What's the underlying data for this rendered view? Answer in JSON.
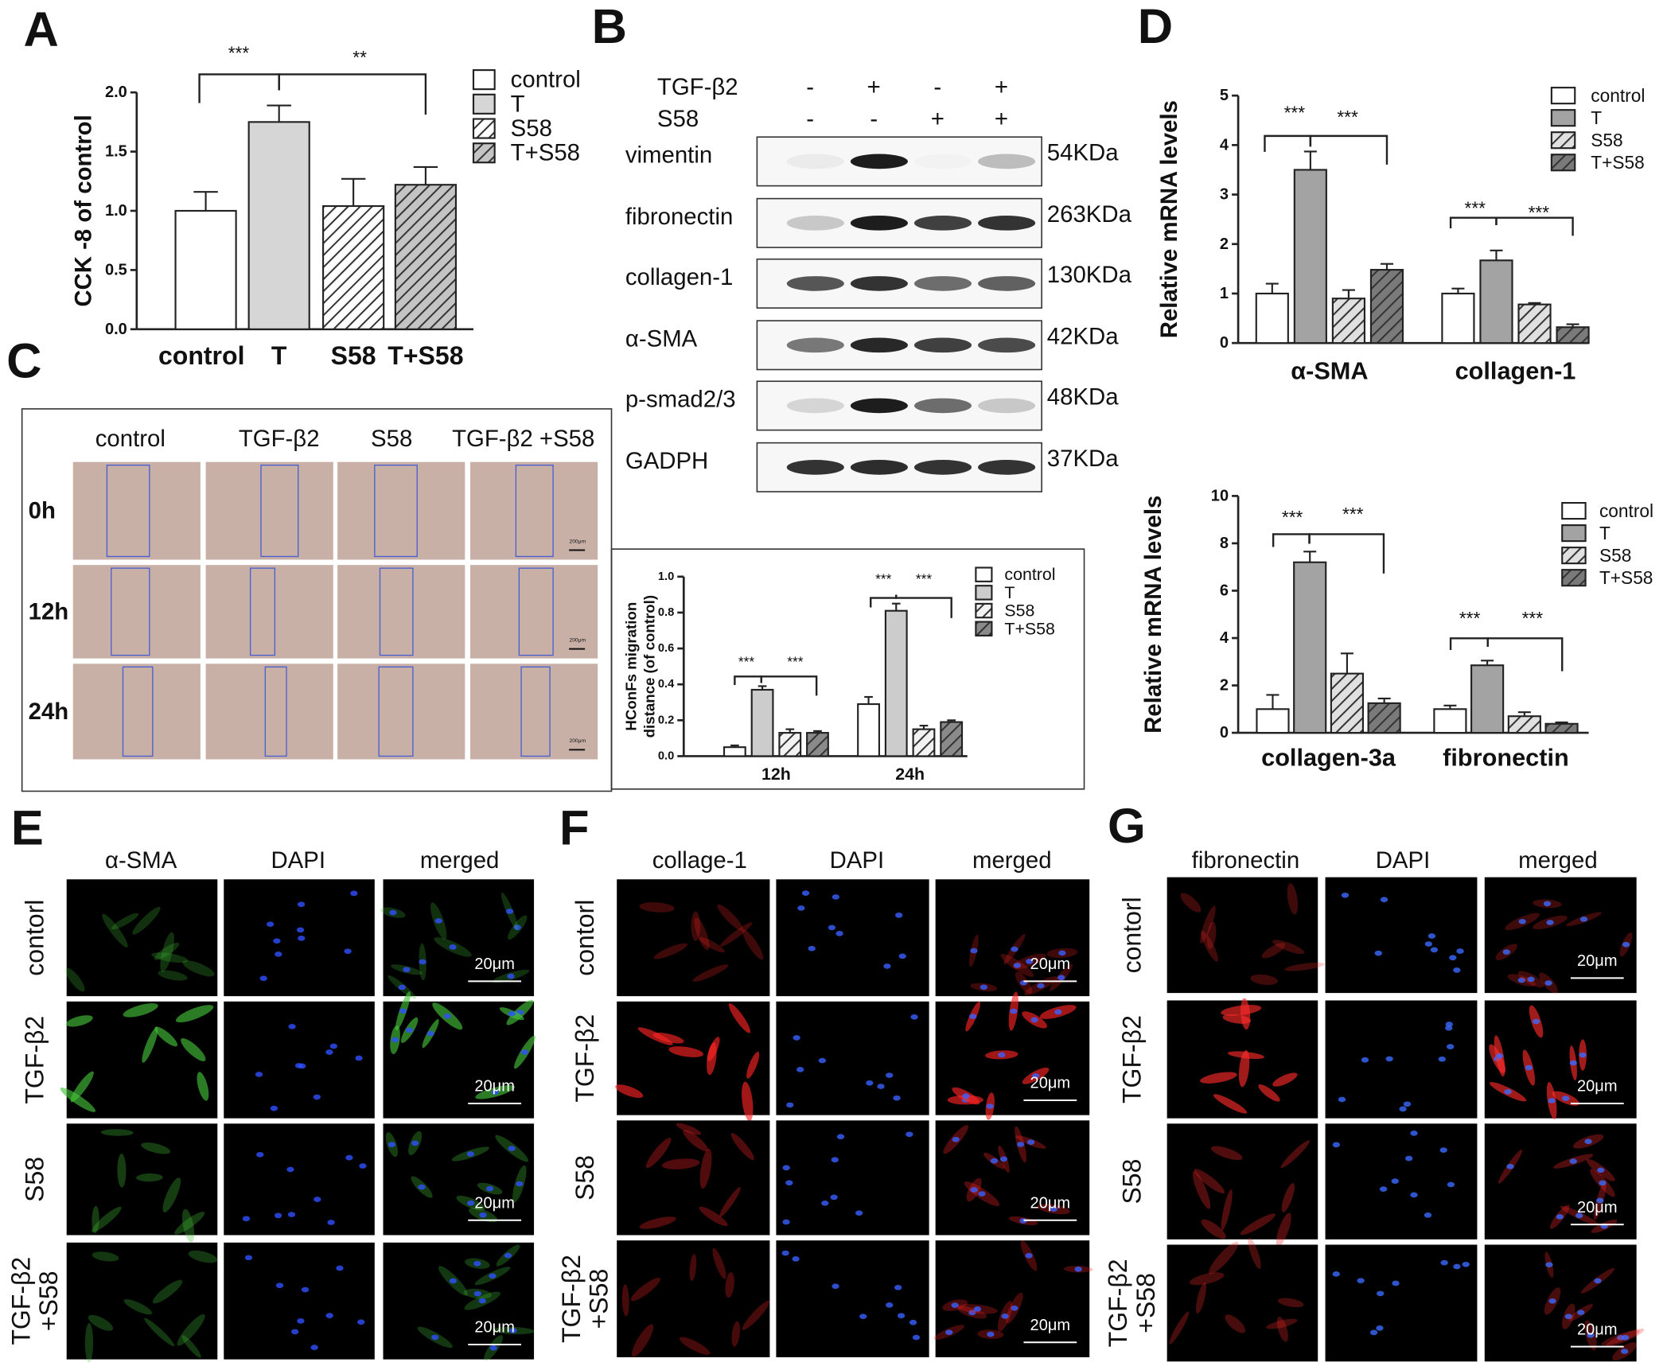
{
  "panel_labels": [
    "A",
    "B",
    "C",
    "D",
    "E",
    "F",
    "G"
  ],
  "chart_data": [
    {
      "type": "bar",
      "ylabel": "CCK -8 of control",
      "categories": [
        "control",
        "T",
        "S58",
        "T+S58"
      ],
      "values": [
        1.0,
        1.75,
        1.04,
        1.22
      ],
      "errors": [
        0.16,
        0.14,
        0.23,
        0.15
      ],
      "colors": [
        "#ffffff",
        "#d6d6d6",
        "#ffffff",
        "#c4c4c4"
      ],
      "hatch": [
        false,
        false,
        true,
        true
      ],
      "legend": [
        "control",
        "T",
        "S58",
        "T+S58"
      ],
      "ylim": [
        0,
        2.0
      ],
      "yticks": [
        {
          "value": 0,
          "label": "0.0"
        },
        {
          "value": 0.5,
          "label": "0.5"
        },
        {
          "value": 1,
          "label": "1.0"
        },
        {
          "value": 1.5,
          "label": "1.5"
        },
        {
          "value": 2,
          "label": "2.0"
        }
      ],
      "annotations": [
        "***",
        "**"
      ]
    },
    {
      "type": "grouped-bar",
      "ylabel": [
        "HConFs migration",
        "distance (of control)"
      ],
      "categories": [
        "12h",
        "24h"
      ],
      "series": [
        {
          "name": "control",
          "color": "#ffffff",
          "hatch": false,
          "values": [
            0.05,
            0.29
          ],
          "errors": [
            0.01,
            0.04
          ]
        },
        {
          "name": "T",
          "color": "#cccccc",
          "hatch": false,
          "values": [
            0.37,
            0.81
          ],
          "errors": [
            0.02,
            0.04
          ]
        },
        {
          "name": "S58",
          "color": "#f2f2f2",
          "hatch": true,
          "values": [
            0.13,
            0.15
          ],
          "errors": [
            0.02,
            0.02
          ]
        },
        {
          "name": "T+S58",
          "color": "#8a8a8a",
          "hatch": true,
          "values": [
            0.13,
            0.19
          ],
          "errors": [
            0.01,
            0.01
          ]
        }
      ],
      "ylim": [
        0,
        1.0
      ],
      "yticks": [
        {
          "value": 0,
          "label": "0.0"
        },
        {
          "value": 0.2,
          "label": "0.2"
        },
        {
          "value": 0.4,
          "label": "0.4"
        },
        {
          "value": 0.6,
          "label": "0.6"
        },
        {
          "value": 0.8,
          "label": "0.8"
        },
        {
          "value": 1,
          "label": "1.0"
        }
      ],
      "annotations": [
        "***",
        "***",
        "***",
        "***"
      ]
    },
    {
      "type": "grouped-bar",
      "ylabel": "Relative mRNA levels",
      "categories": [
        "α-SMA",
        "collagen-1"
      ],
      "series": [
        {
          "name": "control",
          "color": "#ffffff",
          "hatch": false,
          "values": [
            1.0,
            1.0
          ],
          "errors": [
            0.2,
            0.1
          ]
        },
        {
          "name": "T",
          "color": "#a3a3a3",
          "hatch": false,
          "values": [
            3.5,
            1.67
          ],
          "errors": [
            0.37,
            0.2
          ]
        },
        {
          "name": "S58",
          "color": "#e0e0e0",
          "hatch": true,
          "values": [
            0.9,
            0.78
          ],
          "errors": [
            0.17,
            0.03
          ]
        },
        {
          "name": "T+S58",
          "color": "#7a7a7a",
          "hatch": true,
          "values": [
            1.48,
            0.32
          ],
          "errors": [
            0.12,
            0.06
          ]
        }
      ],
      "ylim": [
        0,
        5
      ],
      "yticks": [
        0,
        1,
        2,
        3,
        4,
        5
      ],
      "annotations": [
        "***",
        "***",
        "***",
        "***"
      ]
    },
    {
      "type": "grouped-bar",
      "ylabel": "Relative mRNA levels",
      "categories": [
        "collagen-3a",
        "fibronectin"
      ],
      "series": [
        {
          "name": "control",
          "color": "#ffffff",
          "hatch": false,
          "values": [
            1.0,
            1.0
          ],
          "errors": [
            0.6,
            0.15
          ]
        },
        {
          "name": "T",
          "color": "#a3a3a3",
          "hatch": false,
          "values": [
            7.2,
            2.85
          ],
          "errors": [
            0.45,
            0.2
          ]
        },
        {
          "name": "S58",
          "color": "#e0e0e0",
          "hatch": true,
          "values": [
            2.5,
            0.7
          ],
          "errors": [
            0.85,
            0.17
          ]
        },
        {
          "name": "T+S58",
          "color": "#7a7a7a",
          "hatch": true,
          "values": [
            1.25,
            0.38
          ],
          "errors": [
            0.2,
            0.06
          ]
        }
      ],
      "ylim": [
        0,
        10
      ],
      "yticks": [
        0,
        2,
        4,
        6,
        8,
        10
      ],
      "annotations": [
        "***",
        "***",
        "***",
        "***"
      ]
    }
  ],
  "western_blot": {
    "treatments": [
      {
        "name": "TGF-β2",
        "signs": [
          "-",
          "+",
          "-",
          "+"
        ]
      },
      {
        "name": "S58",
        "signs": [
          "-",
          "-",
          "+",
          "+"
        ]
      }
    ],
    "proteins": [
      {
        "name": "vimentin",
        "size": "54KDa"
      },
      {
        "name": "fibronectin",
        "size": "263KDa"
      },
      {
        "name": "collagen-1",
        "size": "130KDa"
      },
      {
        "name": "α-SMA",
        "size": "42KDa"
      },
      {
        "name": "p-smad2/3",
        "size": "48KDa"
      },
      {
        "name": "GADPH",
        "size": "37KDa"
      }
    ]
  },
  "migration_images": {
    "columns": [
      "control",
      "TGF-β2",
      "S58",
      "TGF-β2 +S58"
    ],
    "rows": [
      "0h",
      "12h",
      "24h"
    ],
    "scale": "200μm"
  },
  "immunofluorescence": [
    {
      "columns": [
        "α-SMA",
        "DAPI",
        "merged"
      ],
      "rows": [
        [
          "contorl"
        ],
        [
          "TGF-β2"
        ],
        [
          "S58"
        ],
        [
          "TGF-β2",
          "+S58"
        ]
      ],
      "scale": "20μm"
    },
    {
      "columns": [
        "collage-1",
        "DAPI",
        "merged"
      ],
      "rows": [
        [
          "contorl"
        ],
        [
          "TGF-β2"
        ],
        [
          "S58"
        ],
        [
          "TGF-β2",
          "+S58"
        ]
      ],
      "scale": "20μm"
    },
    {
      "columns": [
        "fibronectin",
        "DAPI",
        "merged"
      ],
      "rows": [
        [
          "contorl"
        ],
        [
          "TGF-β2"
        ],
        [
          "S58"
        ],
        [
          "TGF-β2",
          "+S58"
        ]
      ],
      "scale": "20μm"
    }
  ]
}
